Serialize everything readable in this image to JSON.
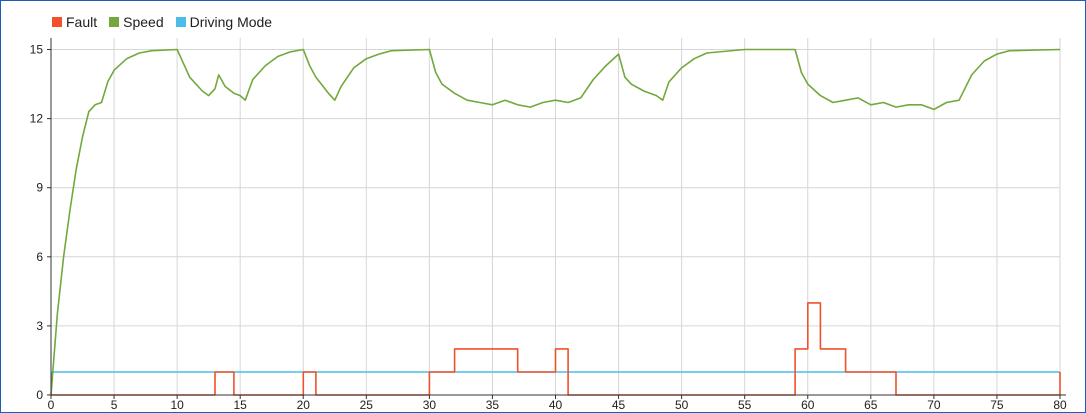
{
  "colors": {
    "fault": "#f0502a",
    "speed": "#73a83c",
    "driving_mode": "#4cbde8",
    "grid": "#d6d6d6",
    "axis": "#333333"
  },
  "chart_data": {
    "type": "line",
    "title": "",
    "xlabel": "",
    "ylabel": "",
    "xlim": [
      0,
      80
    ],
    "ylim": [
      0,
      15.5
    ],
    "x_ticks": [
      0,
      5,
      10,
      15,
      20,
      25,
      30,
      35,
      40,
      45,
      50,
      55,
      60,
      65,
      70,
      75,
      80
    ],
    "y_ticks": [
      0,
      3,
      6,
      9,
      12,
      15
    ],
    "grid": true,
    "legend_position": "top-left",
    "series": [
      {
        "name": "Fault",
        "step": true,
        "points": [
          [
            0,
            0
          ],
          [
            13,
            0
          ],
          [
            13,
            1
          ],
          [
            14.5,
            1
          ],
          [
            14.5,
            0
          ],
          [
            20,
            0
          ],
          [
            20,
            1
          ],
          [
            21,
            1
          ],
          [
            21,
            0
          ],
          [
            30,
            0
          ],
          [
            30,
            1
          ],
          [
            32,
            1
          ],
          [
            32,
            2
          ],
          [
            37,
            2
          ],
          [
            37,
            1
          ],
          [
            40,
            1
          ],
          [
            40,
            2
          ],
          [
            41,
            2
          ],
          [
            41,
            0
          ],
          [
            59,
            0
          ],
          [
            59,
            2
          ],
          [
            60,
            2
          ],
          [
            60,
            4
          ],
          [
            61,
            4
          ],
          [
            61,
            2
          ],
          [
            63,
            2
          ],
          [
            63,
            1
          ],
          [
            67,
            1
          ],
          [
            67,
            0
          ],
          [
            80,
            0
          ],
          [
            80,
            1
          ]
        ]
      },
      {
        "name": "Speed",
        "step": false,
        "points": [
          [
            0,
            0
          ],
          [
            0.5,
            3.5
          ],
          [
            1,
            6
          ],
          [
            1.5,
            8
          ],
          [
            2,
            9.8
          ],
          [
            2.5,
            11.2
          ],
          [
            3,
            12.3
          ],
          [
            3.5,
            12.6
          ],
          [
            4,
            12.7
          ],
          [
            4.5,
            13.6
          ],
          [
            5,
            14.1
          ],
          [
            6,
            14.6
          ],
          [
            7,
            14.85
          ],
          [
            8,
            14.95
          ],
          [
            10,
            15
          ],
          [
            10.5,
            14.4
          ],
          [
            11,
            13.8
          ],
          [
            12,
            13.2
          ],
          [
            12.5,
            13
          ],
          [
            13,
            13.3
          ],
          [
            13.3,
            13.9
          ],
          [
            13.8,
            13.4
          ],
          [
            14.5,
            13.1
          ],
          [
            15,
            13
          ],
          [
            15.4,
            12.8
          ],
          [
            16,
            13.7
          ],
          [
            17,
            14.3
          ],
          [
            18,
            14.7
          ],
          [
            19,
            14.9
          ],
          [
            20,
            15
          ],
          [
            20.5,
            14.3
          ],
          [
            21,
            13.8
          ],
          [
            22,
            13.1
          ],
          [
            22.5,
            12.8
          ],
          [
            23,
            13.4
          ],
          [
            24,
            14.2
          ],
          [
            25,
            14.6
          ],
          [
            26,
            14.8
          ],
          [
            27,
            14.95
          ],
          [
            30,
            15
          ],
          [
            30.5,
            14
          ],
          [
            31,
            13.5
          ],
          [
            32,
            13.1
          ],
          [
            33,
            12.8
          ],
          [
            34,
            12.7
          ],
          [
            35,
            12.6
          ],
          [
            36,
            12.8
          ],
          [
            37,
            12.6
          ],
          [
            38,
            12.5
          ],
          [
            39,
            12.7
          ],
          [
            40,
            12.8
          ],
          [
            41,
            12.7
          ],
          [
            42,
            12.9
          ],
          [
            43,
            13.7
          ],
          [
            44,
            14.3
          ],
          [
            45,
            14.8
          ],
          [
            45.5,
            13.8
          ],
          [
            46,
            13.5
          ],
          [
            47,
            13.2
          ],
          [
            48,
            13
          ],
          [
            48.5,
            12.8
          ],
          [
            49,
            13.6
          ],
          [
            50,
            14.2
          ],
          [
            51,
            14.6
          ],
          [
            52,
            14.85
          ],
          [
            55,
            15
          ],
          [
            59,
            15
          ],
          [
            59.5,
            14
          ],
          [
            60,
            13.5
          ],
          [
            61,
            13
          ],
          [
            62,
            12.7
          ],
          [
            63,
            12.8
          ],
          [
            64,
            12.9
          ],
          [
            65,
            12.6
          ],
          [
            66,
            12.7
          ],
          [
            67,
            12.5
          ],
          [
            68,
            12.6
          ],
          [
            69,
            12.6
          ],
          [
            70,
            12.4
          ],
          [
            71,
            12.7
          ],
          [
            72,
            12.8
          ],
          [
            73,
            13.9
          ],
          [
            74,
            14.5
          ],
          [
            75,
            14.8
          ],
          [
            76,
            14.95
          ],
          [
            80,
            15
          ]
        ]
      },
      {
        "name": "Driving Mode",
        "step": true,
        "points": [
          [
            0,
            0
          ],
          [
            0.1,
            1
          ],
          [
            80,
            1
          ]
        ]
      }
    ]
  }
}
